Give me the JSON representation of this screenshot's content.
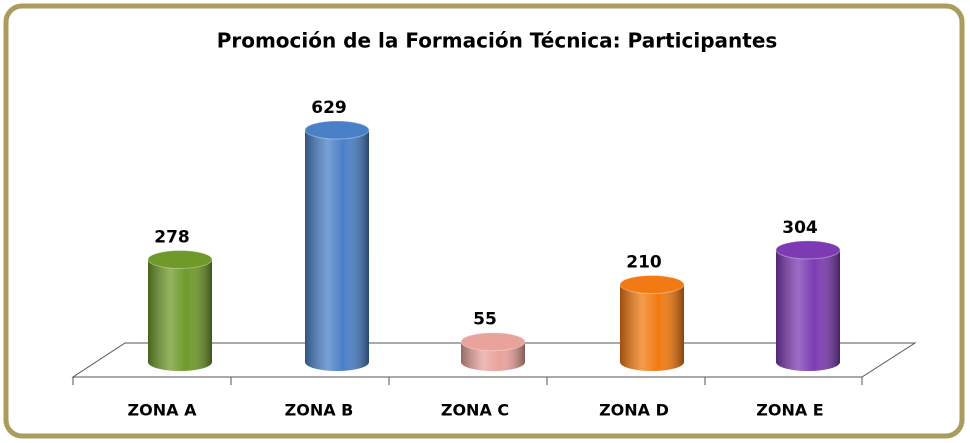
{
  "chart_data": {
    "type": "bar3d",
    "title": "Promoción de la Formación Técnica: Participantes",
    "categories": [
      "ZONA A",
      "ZONA B",
      "ZONA C",
      "ZONA D",
      "ZONA E"
    ],
    "values": [
      278,
      629,
      55,
      210,
      304
    ],
    "colors": [
      "#6f9a2a",
      "#4a80c8",
      "#e9a39c",
      "#f27a12",
      "#7c3bb2"
    ]
  }
}
